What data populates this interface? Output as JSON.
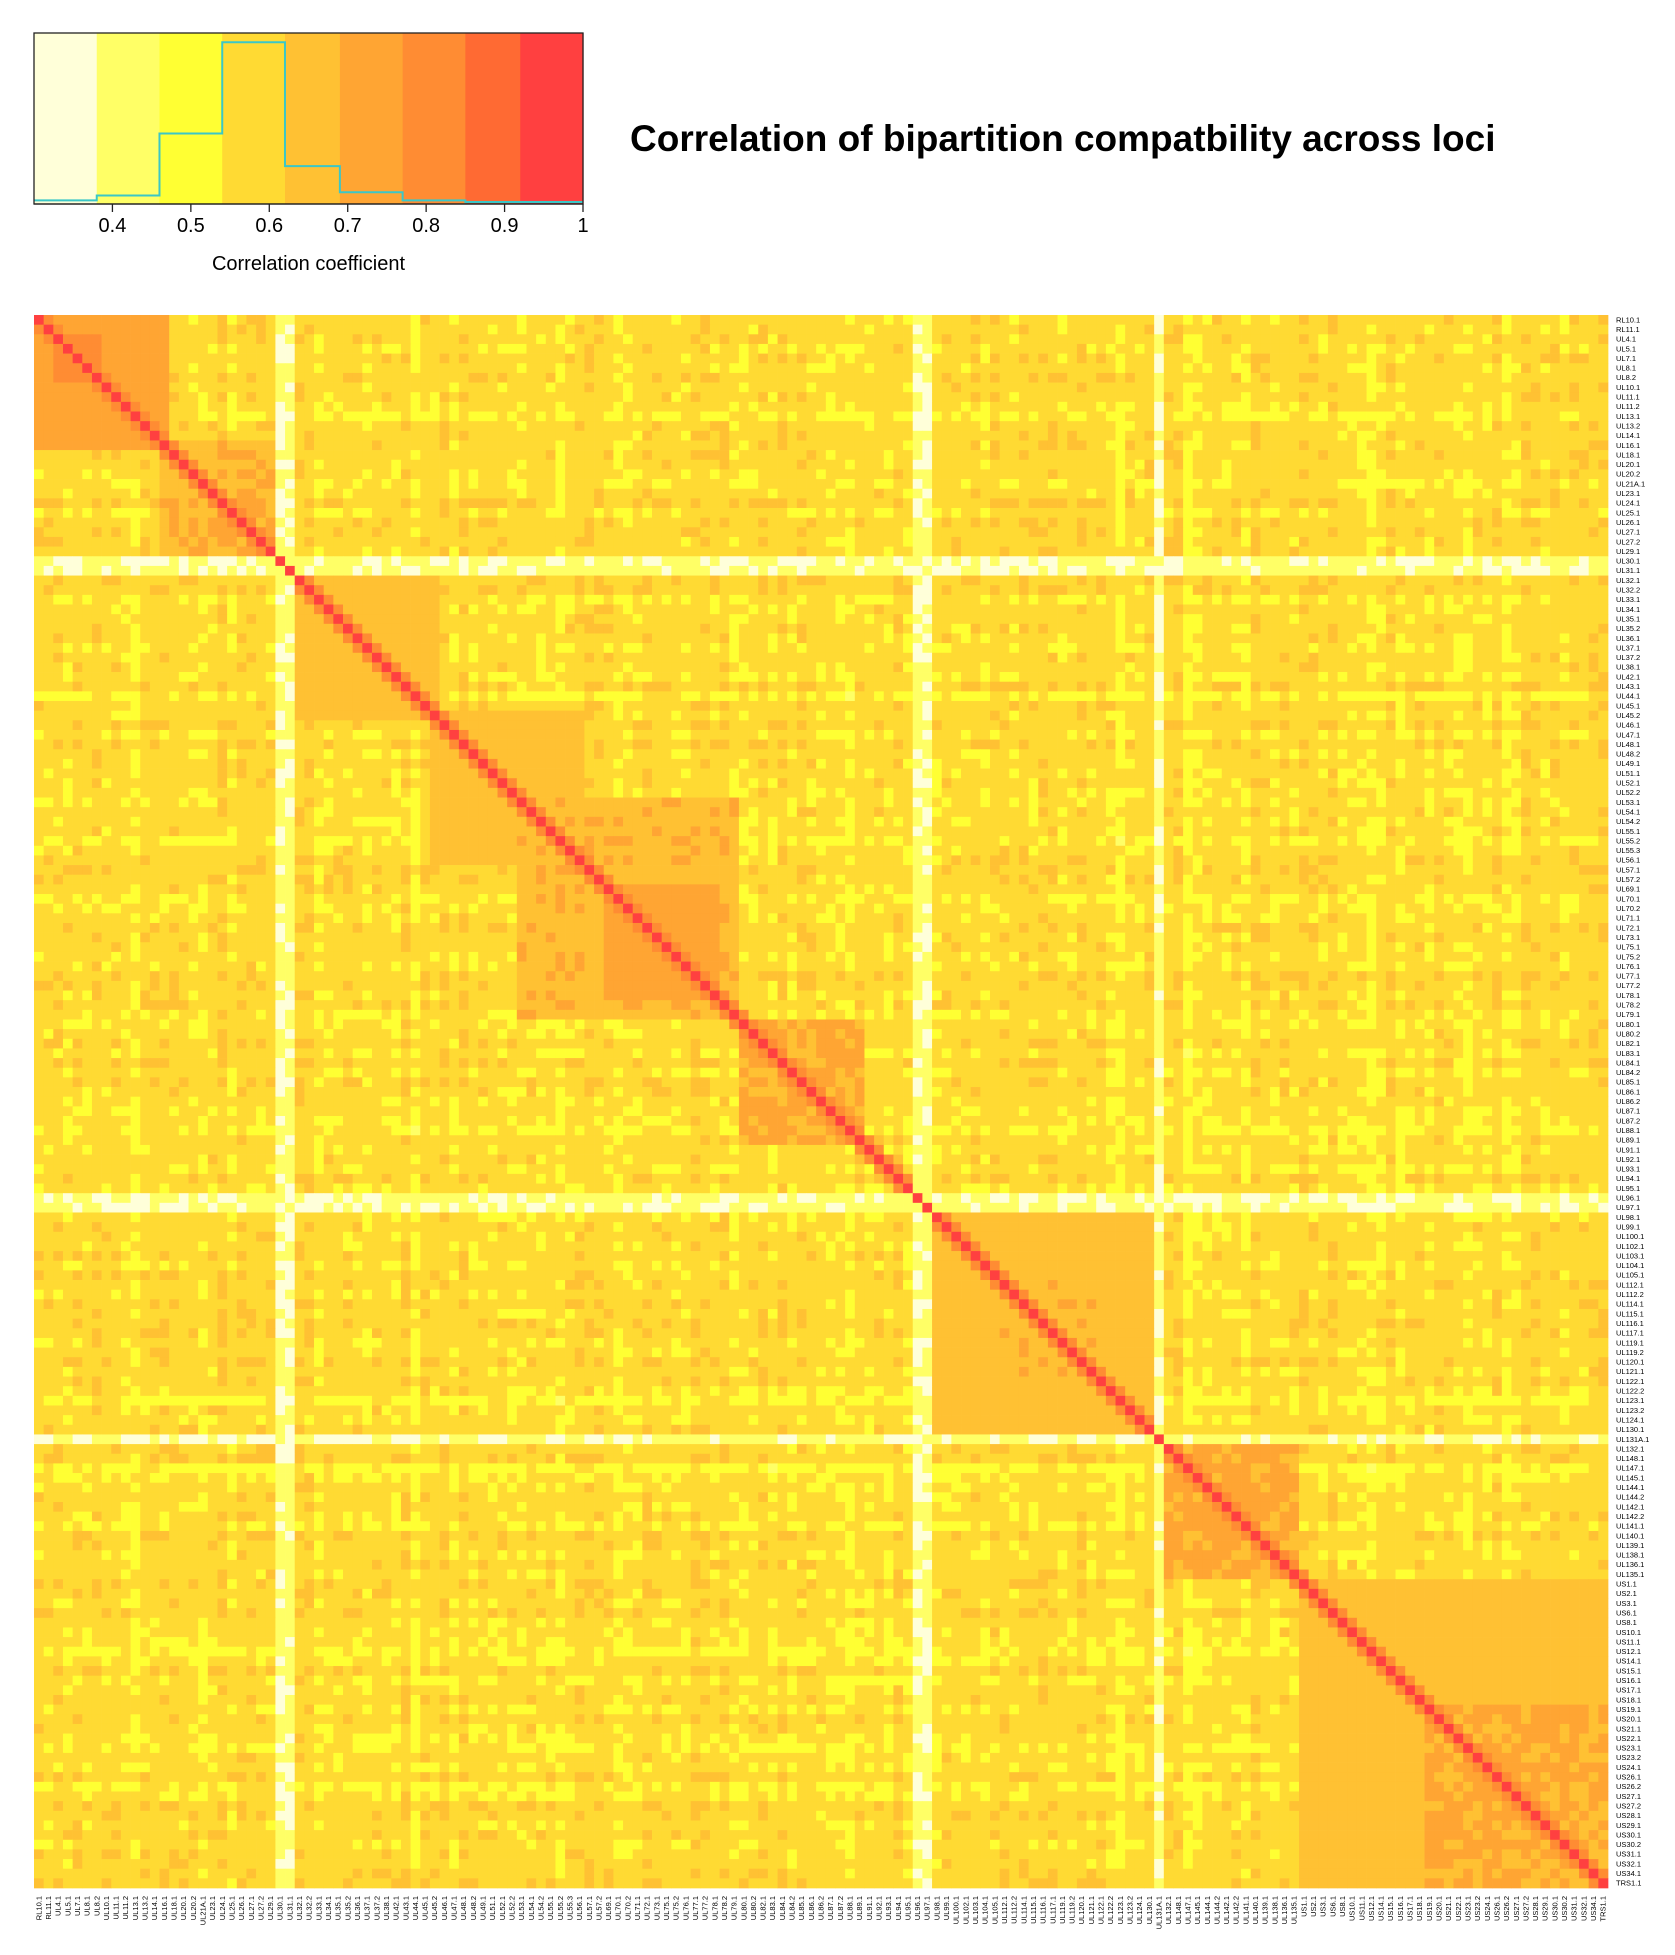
{
  "chart_data": {
    "type": "heatmap",
    "title": "Correlation of bipartition compatbility across loci",
    "color_key": {
      "label": "Correlation coefficient",
      "tick_labels": [
        "0.4",
        "0.5",
        "0.6",
        "0.7",
        "0.8",
        "0.9",
        "1"
      ],
      "tick_values": [
        0.4,
        0.5,
        0.6,
        0.7,
        0.8,
        0.9,
        1.0
      ],
      "range": [
        0.3,
        1.0
      ],
      "bins": [
        {
          "from": 0.3,
          "to": 0.38,
          "color": "#FFFFD9"
        },
        {
          "from": 0.38,
          "to": 0.46,
          "color": "#FFFF66"
        },
        {
          "from": 0.46,
          "to": 0.54,
          "color": "#FFFF33"
        },
        {
          "from": 0.54,
          "to": 0.62,
          "color": "#FFDA33"
        },
        {
          "from": 0.62,
          "to": 0.69,
          "color": "#FFC133"
        },
        {
          "from": 0.69,
          "to": 0.77,
          "color": "#FFA533"
        },
        {
          "from": 0.77,
          "to": 0.85,
          "color": "#FF8C33"
        },
        {
          "from": 0.85,
          "to": 0.92,
          "color": "#FF6A33"
        },
        {
          "from": 0.92,
          "to": 1.0,
          "color": "#FF4040"
        }
      ],
      "histogram_color": "#3BC7C7",
      "histogram_density": [
        0.01,
        0.04,
        0.42,
        0.98,
        0.22,
        0.06,
        0.01,
        0.0,
        0.0
      ]
    },
    "loci": [
      "RL10.1",
      "RL11.1",
      "UL4.1",
      "UL5.1",
      "UL7.1",
      "UL8.1",
      "UL8.2",
      "UL10.1",
      "UL11.1",
      "UL11.2",
      "UL13.1",
      "UL13.2",
      "UL14.1",
      "UL16.1",
      "UL18.1",
      "UL20.1",
      "UL20.2",
      "UL21A.1",
      "UL23.1",
      "UL24.1",
      "UL25.1",
      "UL26.1",
      "UL27.1",
      "UL27.2",
      "UL29.1",
      "UL30.1",
      "UL31.1",
      "UL32.1",
      "UL32.2",
      "UL33.1",
      "UL34.1",
      "UL35.1",
      "UL35.2",
      "UL36.1",
      "UL37.1",
      "UL37.2",
      "UL38.1",
      "UL42.1",
      "UL43.1",
      "UL44.1",
      "UL45.1",
      "UL45.2",
      "UL46.1",
      "UL47.1",
      "UL48.1",
      "UL48.2",
      "UL49.1",
      "UL51.1",
      "UL52.1",
      "UL52.2",
      "UL53.1",
      "UL54.1",
      "UL54.2",
      "UL55.1",
      "UL55.2",
      "UL55.3",
      "UL56.1",
      "UL57.1",
      "UL57.2",
      "UL69.1",
      "UL70.1",
      "UL70.2",
      "UL71.1",
      "UL72.1",
      "UL73.1",
      "UL75.1",
      "UL75.2",
      "UL76.1",
      "UL77.1",
      "UL77.2",
      "UL78.1",
      "UL78.2",
      "UL79.1",
      "UL80.1",
      "UL80.2",
      "UL82.1",
      "UL83.1",
      "UL84.1",
      "UL84.2",
      "UL85.1",
      "UL86.1",
      "UL86.2",
      "UL87.1",
      "UL87.2",
      "UL88.1",
      "UL89.1",
      "UL91.1",
      "UL92.1",
      "UL93.1",
      "UL94.1",
      "UL95.1",
      "UL96.1",
      "UL97.1",
      "UL98.1",
      "UL99.1",
      "UL100.1",
      "UL102.1",
      "UL103.1",
      "UL104.1",
      "UL105.1",
      "UL112.1",
      "UL112.2",
      "UL114.1",
      "UL115.1",
      "UL116.1",
      "UL117.1",
      "UL119.1",
      "UL119.2",
      "UL120.1",
      "UL121.1",
      "UL122.1",
      "UL122.2",
      "UL123.1",
      "UL123.2",
      "UL124.1",
      "UL130.1",
      "UL131A.1",
      "UL132.1",
      "UL148.1",
      "UL147.1",
      "UL145.1",
      "UL144.1",
      "UL144.2",
      "UL142.1",
      "UL142.2",
      "UL141.1",
      "UL140.1",
      "UL139.1",
      "UL138.1",
      "UL136.1",
      "UL135.1",
      "US1.1",
      "US2.1",
      "US3.1",
      "US6.1",
      "US8.1",
      "US10.1",
      "US11.1",
      "US12.1",
      "US14.1",
      "US15.1",
      "US16.1",
      "US17.1",
      "US18.1",
      "US19.1",
      "US20.1",
      "US21.1",
      "US22.1",
      "US23.1",
      "US23.2",
      "US24.1",
      "US26.1",
      "US26.2",
      "US27.1",
      "US27.2",
      "US28.1",
      "US29.1",
      "US30.1",
      "US30.2",
      "US31.1",
      "US32.1",
      "US34.1",
      "TRS1.1"
    ],
    "low_correlation_loci": [
      "UL30.1",
      "UL31.1",
      "UL96.1",
      "UL97.1",
      "UL131A.1"
    ],
    "diagonal_value": 1.0,
    "typical_off_diagonal_value": 0.58,
    "blocks": [
      {
        "from": "RL10.1",
        "to": "UL16.1",
        "value": 0.72
      },
      {
        "from": "UL4.1",
        "to": "UL8.2",
        "value": 0.8
      },
      {
        "from": "UL16.1",
        "to": "UL29.1",
        "value": 0.68
      },
      {
        "from": "UL31.1",
        "to": "UL45.2",
        "value": 0.66
      },
      {
        "from": "UL45.2",
        "to": "UL56.1",
        "value": 0.66
      },
      {
        "from": "UL53.1",
        "to": "UL79.1",
        "value": 0.67
      },
      {
        "from": "UL69.1",
        "to": "UL78.1",
        "value": 0.72
      },
      {
        "from": "UL80.1",
        "to": "UL89.1",
        "value": 0.7
      },
      {
        "from": "UL97.1",
        "to": "UL130.1",
        "value": 0.65
      },
      {
        "from": "UL105.1",
        "to": "UL121.1",
        "value": 0.68
      },
      {
        "from": "UL131A.1",
        "to": "UL135.1",
        "value": 0.7
      },
      {
        "from": "UL144.1",
        "to": "UL140.1",
        "value": 0.75
      },
      {
        "from": "US1.1",
        "to": "TRS1.1",
        "value": 0.66
      },
      {
        "from": "US19.1",
        "to": "TRS1.1",
        "value": 0.7
      }
    ]
  }
}
